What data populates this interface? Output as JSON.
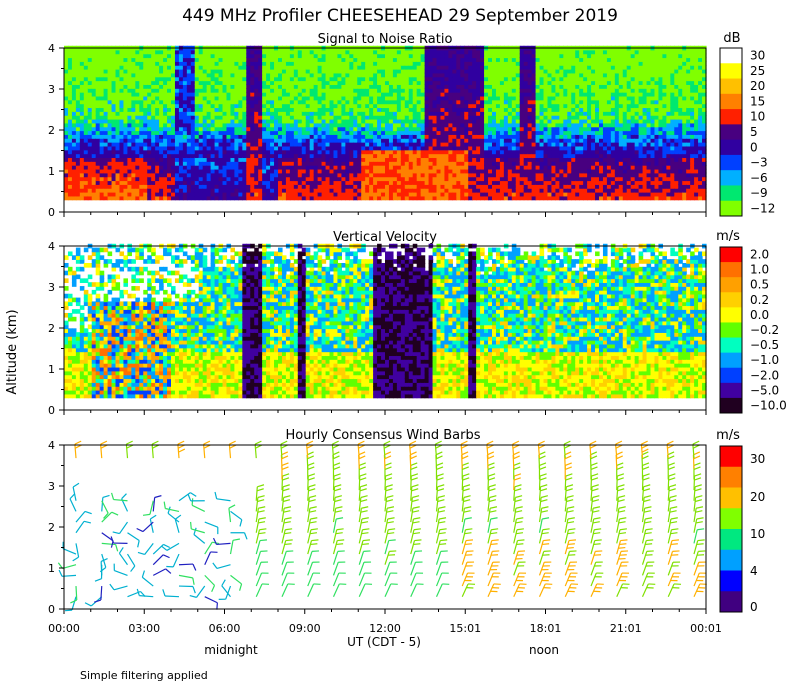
{
  "title": "449 MHz Profiler CHEESEHEAD 29 September 2019",
  "ylabel": "Altitude (km)",
  "xlabel": "UT  (CDT - 5)",
  "x_ticks": [
    "00:00",
    "03:00",
    "06:00",
    "09:00",
    "12:00",
    "15:01",
    "18:01",
    "21:01",
    "00:01"
  ],
  "x_annotations": [
    "midnight",
    "noon"
  ],
  "footnote": "Simple filtering applied",
  "chart_data": [
    {
      "type": "heatmap",
      "title": "Signal to Noise Ratio",
      "units": "dB",
      "ylim": [
        0,
        4
      ],
      "y_ticks": [
        "0",
        "1",
        "2",
        "3",
        "4"
      ],
      "colorbar": {
        "labels": [
          "30",
          "25",
          "20",
          "15",
          "10",
          "5",
          "0",
          "−3",
          "−6",
          "−9",
          "−12"
        ],
        "colors": [
          "#ffffff",
          "#ffff00",
          "#ffc000",
          "#ff8000",
          "#ff2000",
          "#480080",
          "#3000a0",
          "#0040ff",
          "#00b0ff",
          "#00e870",
          "#80ff00"
        ]
      }
    },
    {
      "type": "heatmap",
      "title": "Vertical Velocity",
      "units": "m/s",
      "ylim": [
        0,
        4
      ],
      "y_ticks": [
        "0",
        "1",
        "2",
        "3",
        "4"
      ],
      "colorbar": {
        "labels": [
          "2.0",
          "1.0",
          "0.5",
          "0.2",
          "0.0",
          "−0.2",
          "−0.5",
          "−1.0",
          "−2.0",
          "−5.0",
          "−10.0"
        ],
        "colors": [
          "#ff0000",
          "#ff7000",
          "#ffa000",
          "#ffd000",
          "#ffff00",
          "#60ff00",
          "#00ffc0",
          "#00a0ff",
          "#0040ff",
          "#4000a0",
          "#200020"
        ]
      }
    },
    {
      "type": "wind_barbs",
      "title": "Hourly Consensus Wind Barbs",
      "units": "m/s",
      "ylim": [
        0,
        4
      ],
      "y_ticks": [
        "0",
        "1",
        "2",
        "3",
        "4"
      ],
      "colorbar": {
        "labels": [
          "30",
          "20",
          "10",
          "4",
          "0"
        ],
        "colors": [
          "#ff0000",
          "#ff8000",
          "#ffc000",
          "#80ff00",
          "#00e880",
          "#00a0ff",
          "#0000ff",
          "#400080"
        ]
      }
    }
  ]
}
